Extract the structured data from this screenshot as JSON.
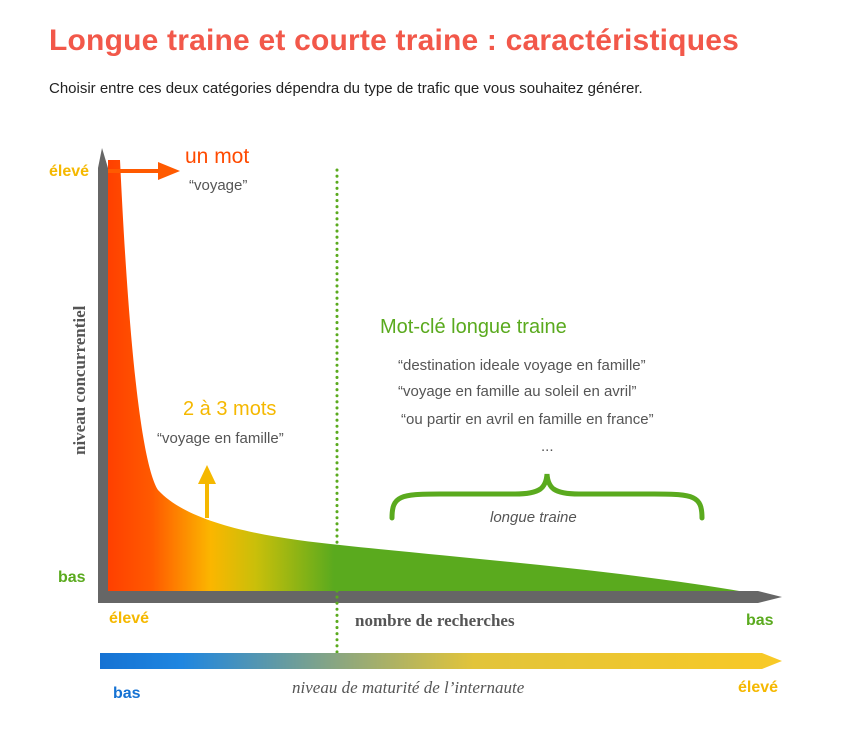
{
  "header": {
    "title": "Longue traine et courte traine : caractéristiques",
    "subtitle": "Choisir entre ces deux catégories dépendra du type de trafic que vous souhaitez générer."
  },
  "y_axis": {
    "label": "niveau concurrentiel",
    "top_label": "élevé",
    "bottom_label": "bas"
  },
  "x_axis": {
    "label": "nombre de recherches",
    "left_label": "élevé",
    "right_label": "bas"
  },
  "maturity_bar": {
    "label": "niveau de maturité de l’internaute",
    "left_label": "bas",
    "right_label": "élevé"
  },
  "short_tail": {
    "heading": "un mot",
    "example": "“voyage”"
  },
  "mid_tail": {
    "heading": "2 à 3 mots",
    "example": "“voyage en famille”"
  },
  "long_tail": {
    "heading": "Mot-clé longue traine",
    "examples": [
      "“destination ideale voyage en famille”",
      "“voyage en famille au soleil en avril”",
      "“ou partir en avril en famille en france”",
      "..."
    ],
    "brace_label": "longue traine"
  },
  "colors": {
    "title": "#f2584a",
    "red": "#ff3b00",
    "orange": "#ff5a00",
    "yellow": "#f5b800",
    "green": "#5aaa1e",
    "blue": "#1572d3",
    "axis": "#666666"
  }
}
